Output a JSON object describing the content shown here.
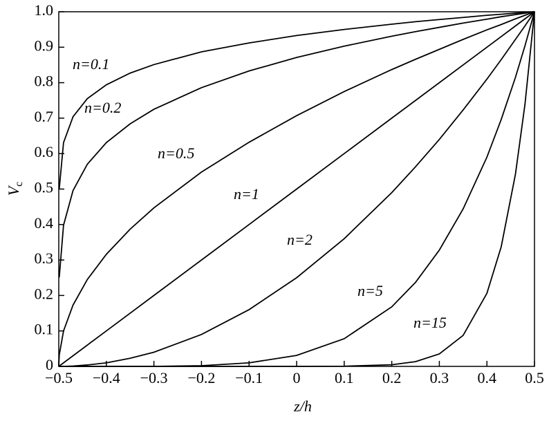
{
  "chart_data": {
    "type": "line",
    "xlabel": "z/h",
    "ylabel": {
      "main": "V",
      "sub": "c"
    },
    "xlim": [
      -0.5,
      0.5
    ],
    "ylim": [
      0,
      1
    ],
    "xticks": [
      {
        "value": -0.5,
        "label": "−0.5"
      },
      {
        "value": -0.4,
        "label": "−0.4"
      },
      {
        "value": -0.3,
        "label": "−0.3"
      },
      {
        "value": -0.2,
        "label": "−0.2"
      },
      {
        "value": -0.1,
        "label": "−0.1"
      },
      0,
      0.1,
      0.2,
      0.3,
      0.4,
      0.5
    ],
    "yticks": [
      0,
      0.1,
      0.2,
      0.3,
      0.4,
      0.5,
      0.6,
      0.7,
      0.8,
      0.9,
      {
        "value": 1,
        "label": "1.0"
      }
    ],
    "x": [
      -0.5,
      -0.499,
      -0.49,
      -0.47,
      -0.44,
      -0.4,
      -0.35,
      -0.3,
      -0.2,
      -0.1,
      0,
      0.1,
      0.2,
      0.25,
      0.3,
      0.35,
      0.4,
      0.43,
      0.46,
      0.48,
      0.5
    ],
    "series": [
      {
        "name": "n=0.1",
        "color": "#000000",
        "values": [
          null,
          0.501,
          0.631,
          0.704,
          0.755,
          0.794,
          0.827,
          0.851,
          0.887,
          0.912,
          0.933,
          0.95,
          0.965,
          0.972,
          0.978,
          0.984,
          0.99,
          0.993,
          0.996,
          0.998,
          1
        ]
      },
      {
        "name": "n=0.2",
        "color": "#000000",
        "values": [
          null,
          0.251,
          0.398,
          0.496,
          0.57,
          0.631,
          0.684,
          0.725,
          0.786,
          0.833,
          0.871,
          0.903,
          0.931,
          0.944,
          0.956,
          0.968,
          0.979,
          0.986,
          0.992,
          0.996,
          1
        ]
      },
      {
        "name": "n=0.5",
        "color": "#000000",
        "values": [
          0,
          0.032,
          0.1,
          0.173,
          0.245,
          0.316,
          0.387,
          0.447,
          0.548,
          0.632,
          0.707,
          0.775,
          0.837,
          0.866,
          0.894,
          0.922,
          0.949,
          0.964,
          0.98,
          0.99,
          1
        ]
      },
      {
        "name": "n=1",
        "color": "#000000",
        "values": [
          0,
          0.001,
          0.01,
          0.03,
          0.06,
          0.1,
          0.15,
          0.2,
          0.3,
          0.4,
          0.5,
          0.6,
          0.7,
          0.75,
          0.8,
          0.85,
          0.9,
          0.93,
          0.96,
          0.98,
          1
        ]
      },
      {
        "name": "n=2",
        "color": "#000000",
        "values": [
          0,
          0,
          0,
          0.001,
          0.004,
          0.01,
          0.023,
          0.04,
          0.09,
          0.16,
          0.25,
          0.36,
          0.49,
          0.563,
          0.64,
          0.723,
          0.81,
          0.865,
          0.922,
          0.96,
          1
        ]
      },
      {
        "name": "n=5",
        "color": "#000000",
        "values": [
          0,
          0,
          0,
          0,
          0,
          0,
          0,
          0,
          0.002,
          0.01,
          0.031,
          0.078,
          0.168,
          0.237,
          0.328,
          0.444,
          0.59,
          0.696,
          0.815,
          0.904,
          1
        ]
      },
      {
        "name": "n=15",
        "color": "#000000",
        "values": [
          0,
          0,
          0,
          0,
          0,
          0,
          0,
          0,
          0,
          0,
          0,
          0.0005,
          0.0047,
          0.0134,
          0.0352,
          0.0874,
          0.206,
          0.337,
          0.542,
          0.739,
          1
        ]
      }
    ]
  }
}
